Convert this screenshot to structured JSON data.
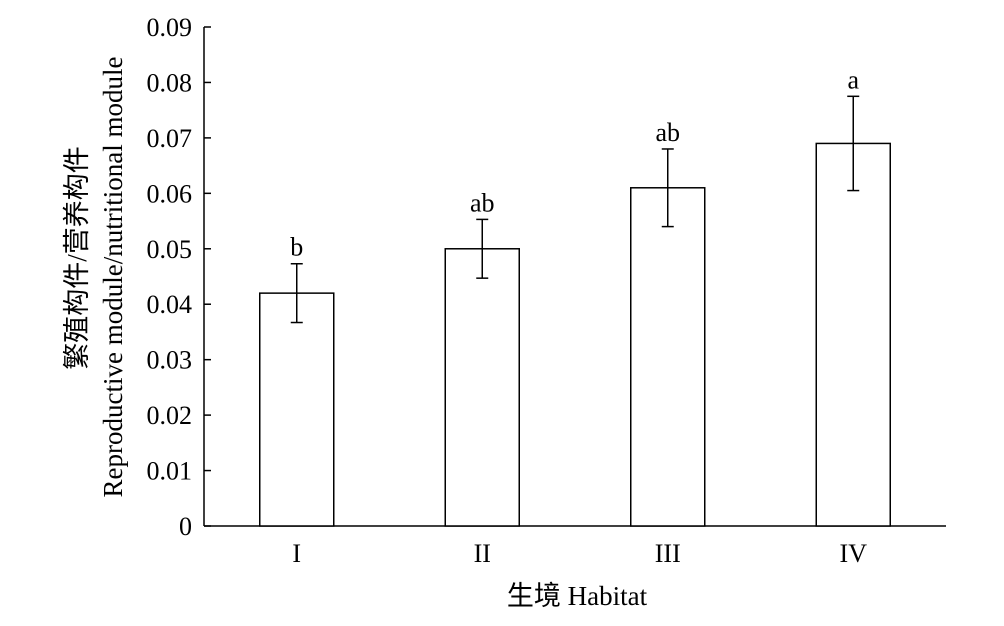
{
  "chart_data": {
    "type": "bar",
    "xlabel": "生境 Habitat",
    "ylabel_line1": "繁殖构件/营养构件",
    "ylabel_line2": "Reproductive module/nutritional module",
    "categories": [
      "I",
      "II",
      "III",
      "IV"
    ],
    "values": [
      0.042,
      0.05,
      0.061,
      0.069
    ],
    "error": [
      0.0053,
      0.0053,
      0.007,
      0.0085
    ],
    "significance": [
      "b",
      "ab",
      "ab",
      "a"
    ],
    "ylim": [
      0,
      0.09
    ],
    "yticks": [
      "0",
      "0.01",
      "0.02",
      "0.03",
      "0.04",
      "0.05",
      "0.06",
      "0.07",
      "0.08",
      "0.09"
    ],
    "grid": false,
    "bar_fill": "#ffffff",
    "bar_stroke": "#000000"
  }
}
